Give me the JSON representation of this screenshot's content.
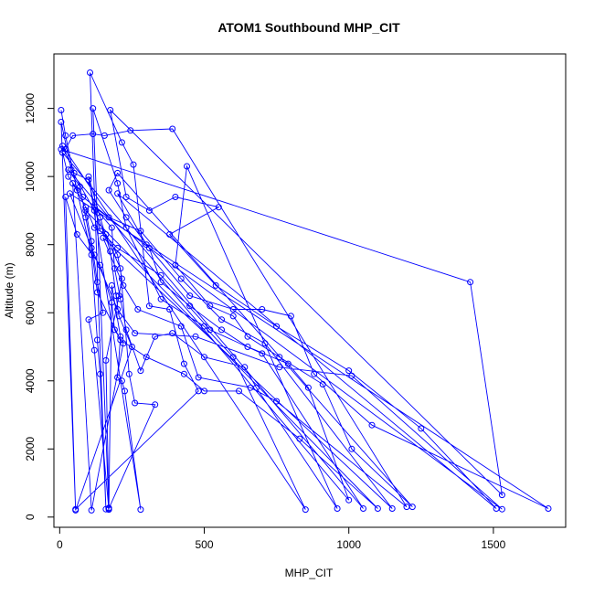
{
  "chart_data": {
    "type": "scatter",
    "mode": "lines+markers",
    "title": "ATOM1 Southbound MHP_CIT",
    "xlabel": "MHP_CIT",
    "ylabel": "Altitude (m)",
    "xlim": [
      -20,
      1750
    ],
    "ylim": [
      -300,
      13600
    ],
    "xticks": [
      0,
      500,
      1000,
      1500
    ],
    "yticks": [
      0,
      2000,
      4000,
      6000,
      8000,
      10000,
      12000
    ],
    "color": "#0000ff",
    "marker": "open-circle",
    "grid": false,
    "series": [
      {
        "points": [
          [
            5,
            11950
          ],
          [
            20,
            11200
          ],
          [
            60,
            9600
          ],
          [
            110,
            7700
          ],
          [
            130,
            5200
          ],
          [
            140,
            4200
          ],
          [
            160,
            230
          ],
          [
            105,
            13050
          ],
          [
            215,
            11000
          ],
          [
            255,
            10350
          ],
          [
            310,
            6200
          ],
          [
            380,
            6100
          ],
          [
            430,
            4500
          ],
          [
            480,
            3700
          ],
          [
            55,
            230
          ],
          [
            5,
            11600
          ],
          [
            40,
            10200
          ],
          [
            120,
            9000
          ],
          [
            210,
            7300
          ],
          [
            240,
            4200
          ],
          [
            260,
            3350
          ],
          [
            330,
            3300
          ],
          [
            170,
            250
          ],
          [
            115,
            12000
          ],
          [
            200,
            9800
          ],
          [
            230,
            8500
          ],
          [
            350,
            6400
          ],
          [
            500,
            5600
          ],
          [
            600,
            4700
          ],
          [
            850,
            220
          ],
          [
            10,
            10900
          ],
          [
            50,
            10100
          ],
          [
            100,
            9900
          ],
          [
            140,
            8400
          ],
          [
            200,
            7900
          ],
          [
            350,
            7100
          ],
          [
            520,
            5500
          ],
          [
            700,
            4800
          ],
          [
            1050,
            250
          ],
          [
            10,
            10700
          ],
          [
            30,
            10000
          ],
          [
            80,
            9400
          ],
          [
            170,
            8800
          ],
          [
            280,
            8400
          ],
          [
            420,
            7000
          ],
          [
            560,
            5800
          ],
          [
            710,
            5100
          ],
          [
            1150,
            250
          ],
          [
            150,
            8200
          ],
          [
            220,
            6800
          ],
          [
            270,
            6100
          ],
          [
            420,
            5600
          ],
          [
            480,
            4100
          ],
          [
            660,
            3800
          ],
          [
            750,
            3400
          ],
          [
            1200,
            300
          ],
          [
            390,
            11400
          ],
          [
            245,
            11350
          ],
          [
            155,
            11200
          ],
          [
            115,
            11250
          ],
          [
            45,
            11200
          ],
          [
            20,
            10800
          ],
          [
            5,
            10800
          ],
          [
            1420,
            6900
          ],
          [
            1530,
            650
          ],
          [
            175,
            11950
          ],
          [
            230,
            9400
          ],
          [
            310,
            9000
          ],
          [
            400,
            9400
          ],
          [
            550,
            9100
          ],
          [
            380,
            8300
          ],
          [
            540,
            6800
          ],
          [
            750,
            5600
          ],
          [
            1000,
            4300
          ],
          [
            1250,
            2600
          ],
          [
            1510,
            250
          ],
          [
            200,
            9500
          ],
          [
            300,
            8000
          ],
          [
            450,
            6500
          ],
          [
            600,
            6100
          ],
          [
            700,
            6100
          ],
          [
            800,
            5900
          ],
          [
            880,
            4200
          ],
          [
            1080,
            2700
          ],
          [
            1690,
            250
          ],
          [
            35,
            9500
          ],
          [
            120,
            7700
          ],
          [
            200,
            6100
          ],
          [
            260,
            5400
          ],
          [
            470,
            5300
          ],
          [
            760,
            4400
          ],
          [
            1010,
            4150
          ],
          [
            1530,
            230
          ],
          [
            120,
            9100
          ],
          [
            180,
            8500
          ],
          [
            190,
            7300
          ],
          [
            210,
            6400
          ],
          [
            230,
            5500
          ],
          [
            280,
            4300
          ],
          [
            330,
            5300
          ],
          [
            390,
            5400
          ],
          [
            500,
            4700
          ],
          [
            640,
            4400
          ],
          [
            680,
            3800
          ],
          [
            960,
            250
          ],
          [
            440,
            10300
          ],
          [
            400,
            7400
          ],
          [
            520,
            6200
          ],
          [
            600,
            5900
          ],
          [
            650,
            5300
          ],
          [
            760,
            4700
          ],
          [
            910,
            3900
          ],
          [
            1010,
            2000
          ],
          [
            1220,
            300
          ],
          [
            200,
            10100
          ],
          [
            170,
            9600
          ],
          [
            230,
            8800
          ],
          [
            310,
            7900
          ],
          [
            350,
            6900
          ],
          [
            450,
            6200
          ],
          [
            560,
            5500
          ],
          [
            650,
            5000
          ],
          [
            790,
            4500
          ],
          [
            860,
            3800
          ],
          [
            1000,
            500
          ],
          [
            30,
            10200
          ],
          [
            70,
            9700
          ],
          [
            90,
            8800
          ],
          [
            110,
            7900
          ],
          [
            130,
            6600
          ],
          [
            210,
            5200
          ],
          [
            300,
            4700
          ],
          [
            430,
            4200
          ],
          [
            500,
            3700
          ],
          [
            620,
            3700
          ],
          [
            830,
            2300
          ],
          [
            1100,
            250
          ],
          [
            90,
            9000
          ],
          [
            110,
            8100
          ],
          [
            130,
            6900
          ],
          [
            150,
            6000
          ],
          [
            100,
            5800
          ],
          [
            120,
            4900
          ],
          [
            170,
            220
          ],
          [
            180,
            6800
          ],
          [
            210,
            5300
          ],
          [
            200,
            4100
          ],
          [
            215,
            4000
          ],
          [
            225,
            3700
          ],
          [
            280,
            220
          ],
          [
            100,
            10000
          ],
          [
            140,
            8800
          ],
          [
            175,
            7800
          ],
          [
            195,
            6500
          ],
          [
            205,
            5900
          ],
          [
            250,
            5000
          ],
          [
            55,
            200
          ],
          [
            20,
            9400
          ],
          [
            60,
            8300
          ],
          [
            140,
            7400
          ],
          [
            180,
            6300
          ],
          [
            190,
            5500
          ],
          [
            220,
            5100
          ],
          [
            110,
            200
          ],
          [
            45,
            9800
          ],
          [
            90,
            9100
          ],
          [
            120,
            8500
          ],
          [
            160,
            8300
          ],
          [
            200,
            7700
          ],
          [
            215,
            7000
          ],
          [
            205,
            6500
          ],
          [
            160,
            4600
          ],
          [
            170,
            270
          ]
        ]
      }
    ]
  }
}
